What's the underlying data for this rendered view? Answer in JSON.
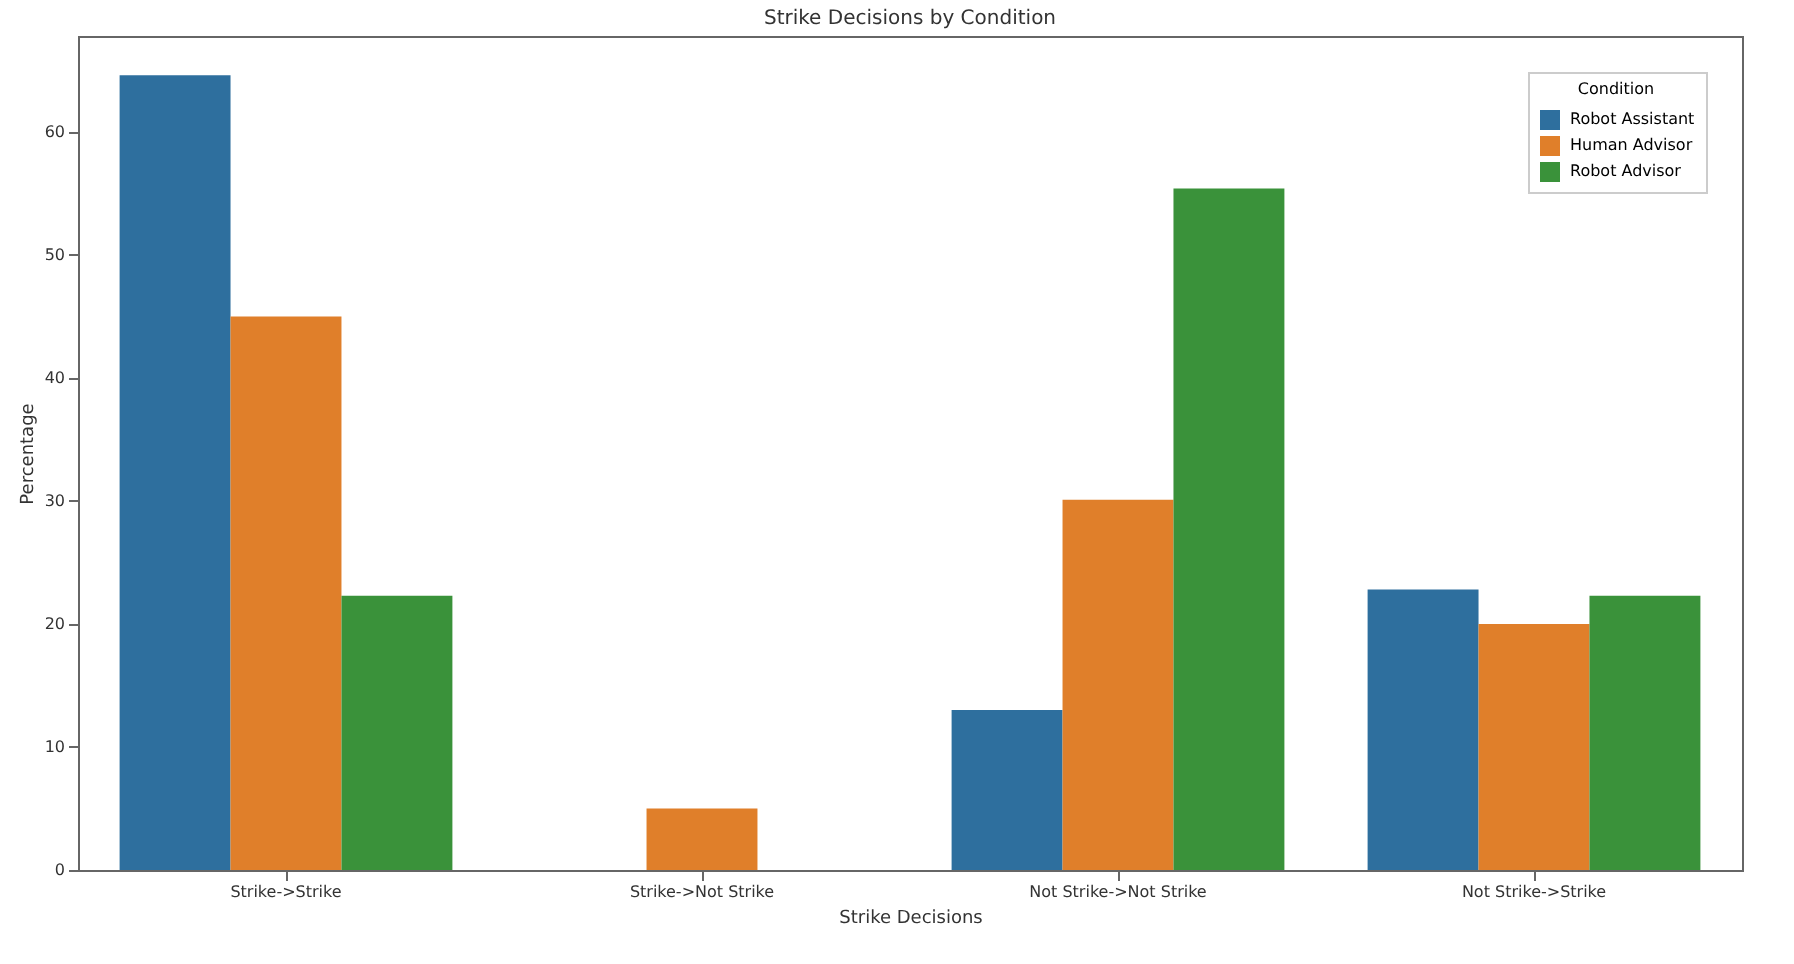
{
  "chart_data": {
    "type": "bar",
    "title": "Strike Decisions by Condition",
    "xlabel": "Strike Decisions",
    "ylabel": "Percentage",
    "legend_title": "Condition",
    "categories": [
      "Strike->Strike",
      "Strike->Not Strike",
      "Not Strike->Not Strike",
      "Not Strike->Strike"
    ],
    "series": [
      {
        "name": "Robot Assistant",
        "color": "#2e6f9e",
        "values": [
          64.6,
          0,
          13.0,
          22.8
        ]
      },
      {
        "name": "Human Advisor",
        "color": "#e07f2a",
        "values": [
          45.0,
          5.0,
          30.1,
          20.0
        ]
      },
      {
        "name": "Robot Advisor",
        "color": "#3a923a",
        "values": [
          22.3,
          0,
          55.4,
          22.3
        ]
      }
    ],
    "ylim": [
      0,
      67.8
    ],
    "yticks": [
      0,
      10,
      20,
      30,
      40,
      50,
      60
    ],
    "grid": false,
    "legend": "top right"
  }
}
